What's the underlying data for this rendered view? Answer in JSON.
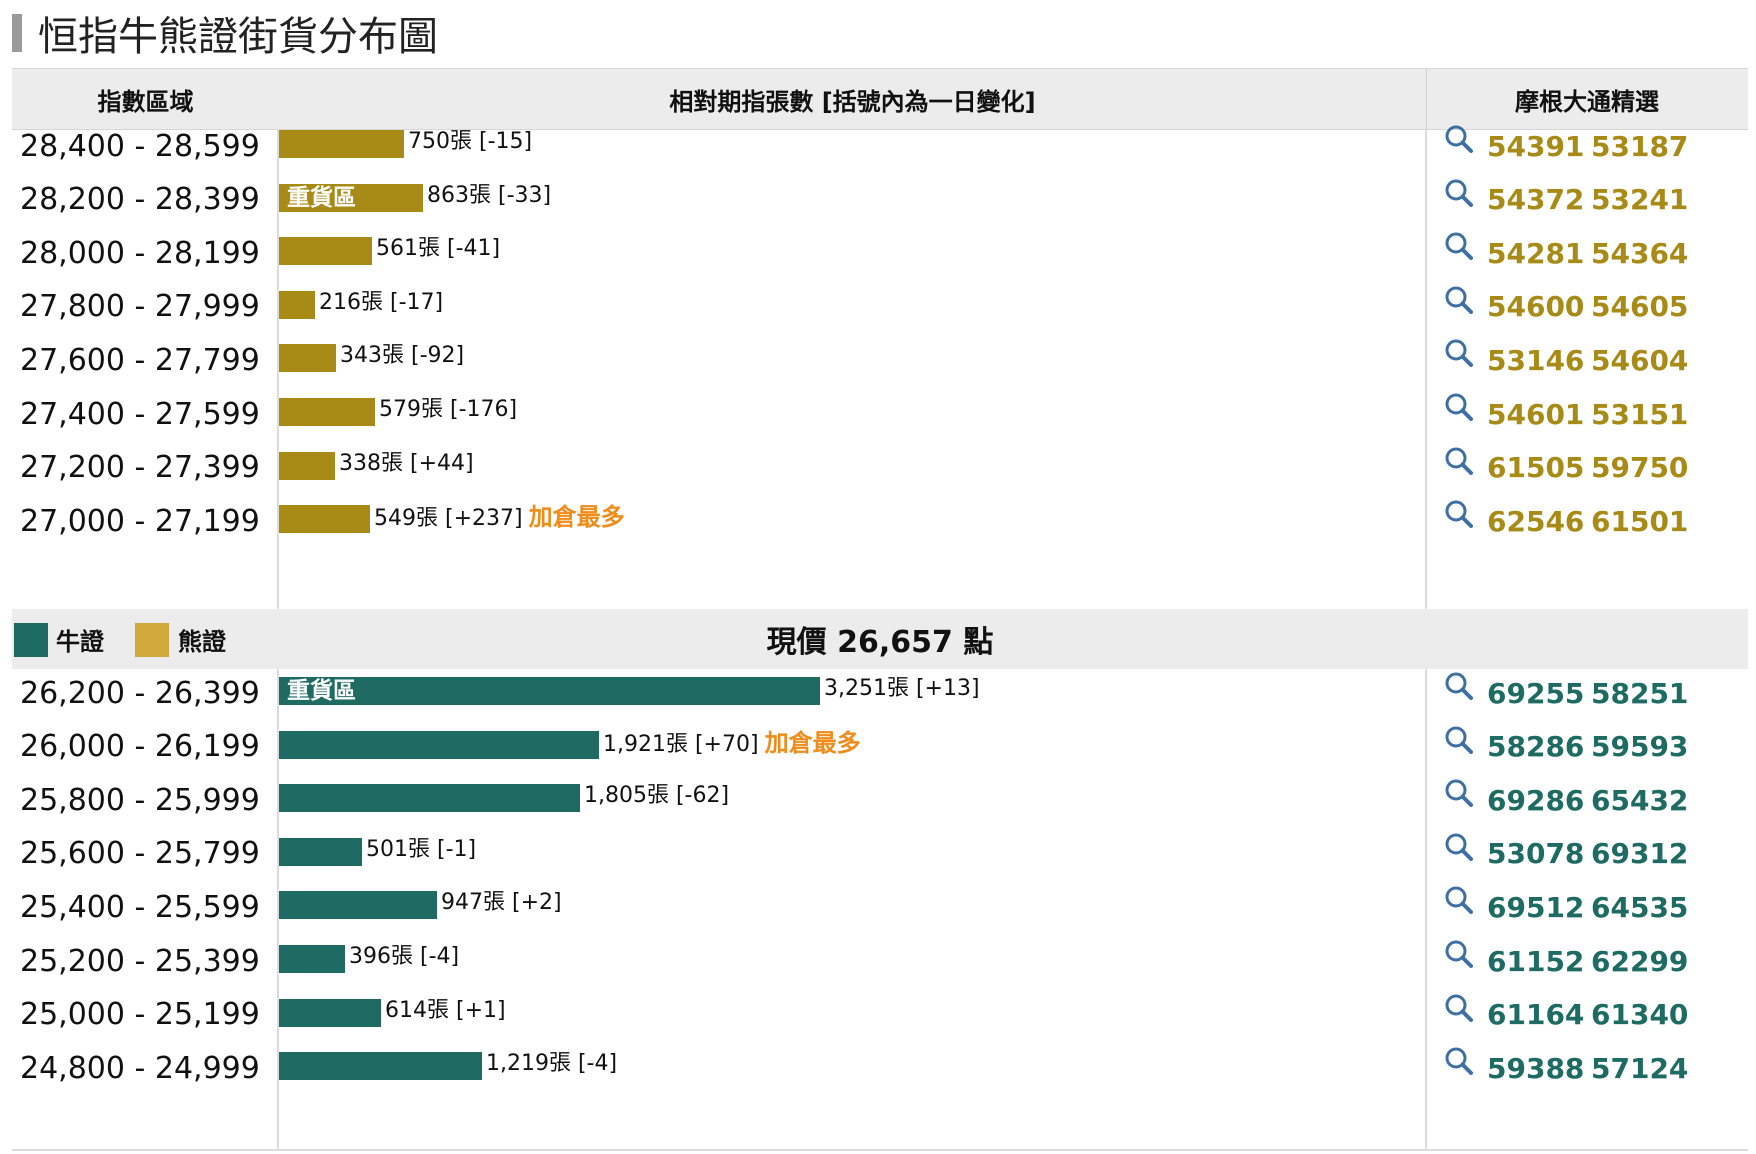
{
  "title": "恒指牛熊證街貨分布圖",
  "header": {
    "range": "指數區域",
    "bars": "相對期指張數 [括號內為一日變化]",
    "picks": "摩根大通精選"
  },
  "current_price": "現價 26,657 點",
  "legend": {
    "bull": "牛證",
    "bear": "熊證"
  },
  "colors": {
    "bull": "#1e6b63",
    "bear": "#a88a16",
    "bear_legend": "#d1a93b",
    "hot": "#f08c1a"
  },
  "zone_label": "重貨區",
  "hot_label": "加倉最多",
  "unit": "張",
  "chart_data": {
    "type": "bar",
    "bear": [
      {
        "range": "28,400 - 28,599",
        "value": 750,
        "change": "-15",
        "picks": [
          "54391",
          "53187"
        ]
      },
      {
        "range": "28,200 - 28,399",
        "value": 863,
        "change": "-33",
        "zone": true,
        "picks": [
          "54372",
          "53241"
        ]
      },
      {
        "range": "28,000 - 28,199",
        "value": 561,
        "change": "-41",
        "picks": [
          "54281",
          "54364"
        ]
      },
      {
        "range": "27,800 - 27,999",
        "value": 216,
        "change": "-17",
        "picks": [
          "54600",
          "54605"
        ]
      },
      {
        "range": "27,600 - 27,799",
        "value": 343,
        "change": "-92",
        "picks": [
          "53146",
          "54604"
        ]
      },
      {
        "range": "27,400 - 27,599",
        "value": 579,
        "change": "-176",
        "picks": [
          "54601",
          "53151"
        ]
      },
      {
        "range": "27,200 - 27,399",
        "value": 338,
        "change": "+44",
        "picks": [
          "61505",
          "59750"
        ]
      },
      {
        "range": "27,000 - 27,199",
        "value": 549,
        "change": "+237",
        "hot": true,
        "picks": [
          "62546",
          "61501"
        ]
      }
    ],
    "bull": [
      {
        "range": "26,200 - 26,399",
        "value": 3251,
        "change": "+13",
        "zone": true,
        "picks": [
          "69255",
          "58251"
        ]
      },
      {
        "range": "26,000 - 26,199",
        "value": 1921,
        "change": "+70",
        "hot": true,
        "picks": [
          "58286",
          "59593"
        ]
      },
      {
        "range": "25,800 - 25,999",
        "value": 1805,
        "change": "-62",
        "picks": [
          "69286",
          "65432"
        ]
      },
      {
        "range": "25,600 - 25,799",
        "value": 501,
        "change": "-1",
        "picks": [
          "53078",
          "69312"
        ]
      },
      {
        "range": "25,400 - 25,599",
        "value": 947,
        "change": "+2",
        "picks": [
          "69512",
          "64535"
        ]
      },
      {
        "range": "25,200 - 25,399",
        "value": 396,
        "change": "-4",
        "picks": [
          "61152",
          "62299"
        ]
      },
      {
        "range": "25,000 - 25,199",
        "value": 614,
        "change": "+1",
        "picks": [
          "61164",
          "61340"
        ]
      },
      {
        "range": "24,800 - 24,999",
        "value": 1219,
        "change": "-4",
        "picks": [
          "59388",
          "57124"
        ]
      }
    ]
  }
}
